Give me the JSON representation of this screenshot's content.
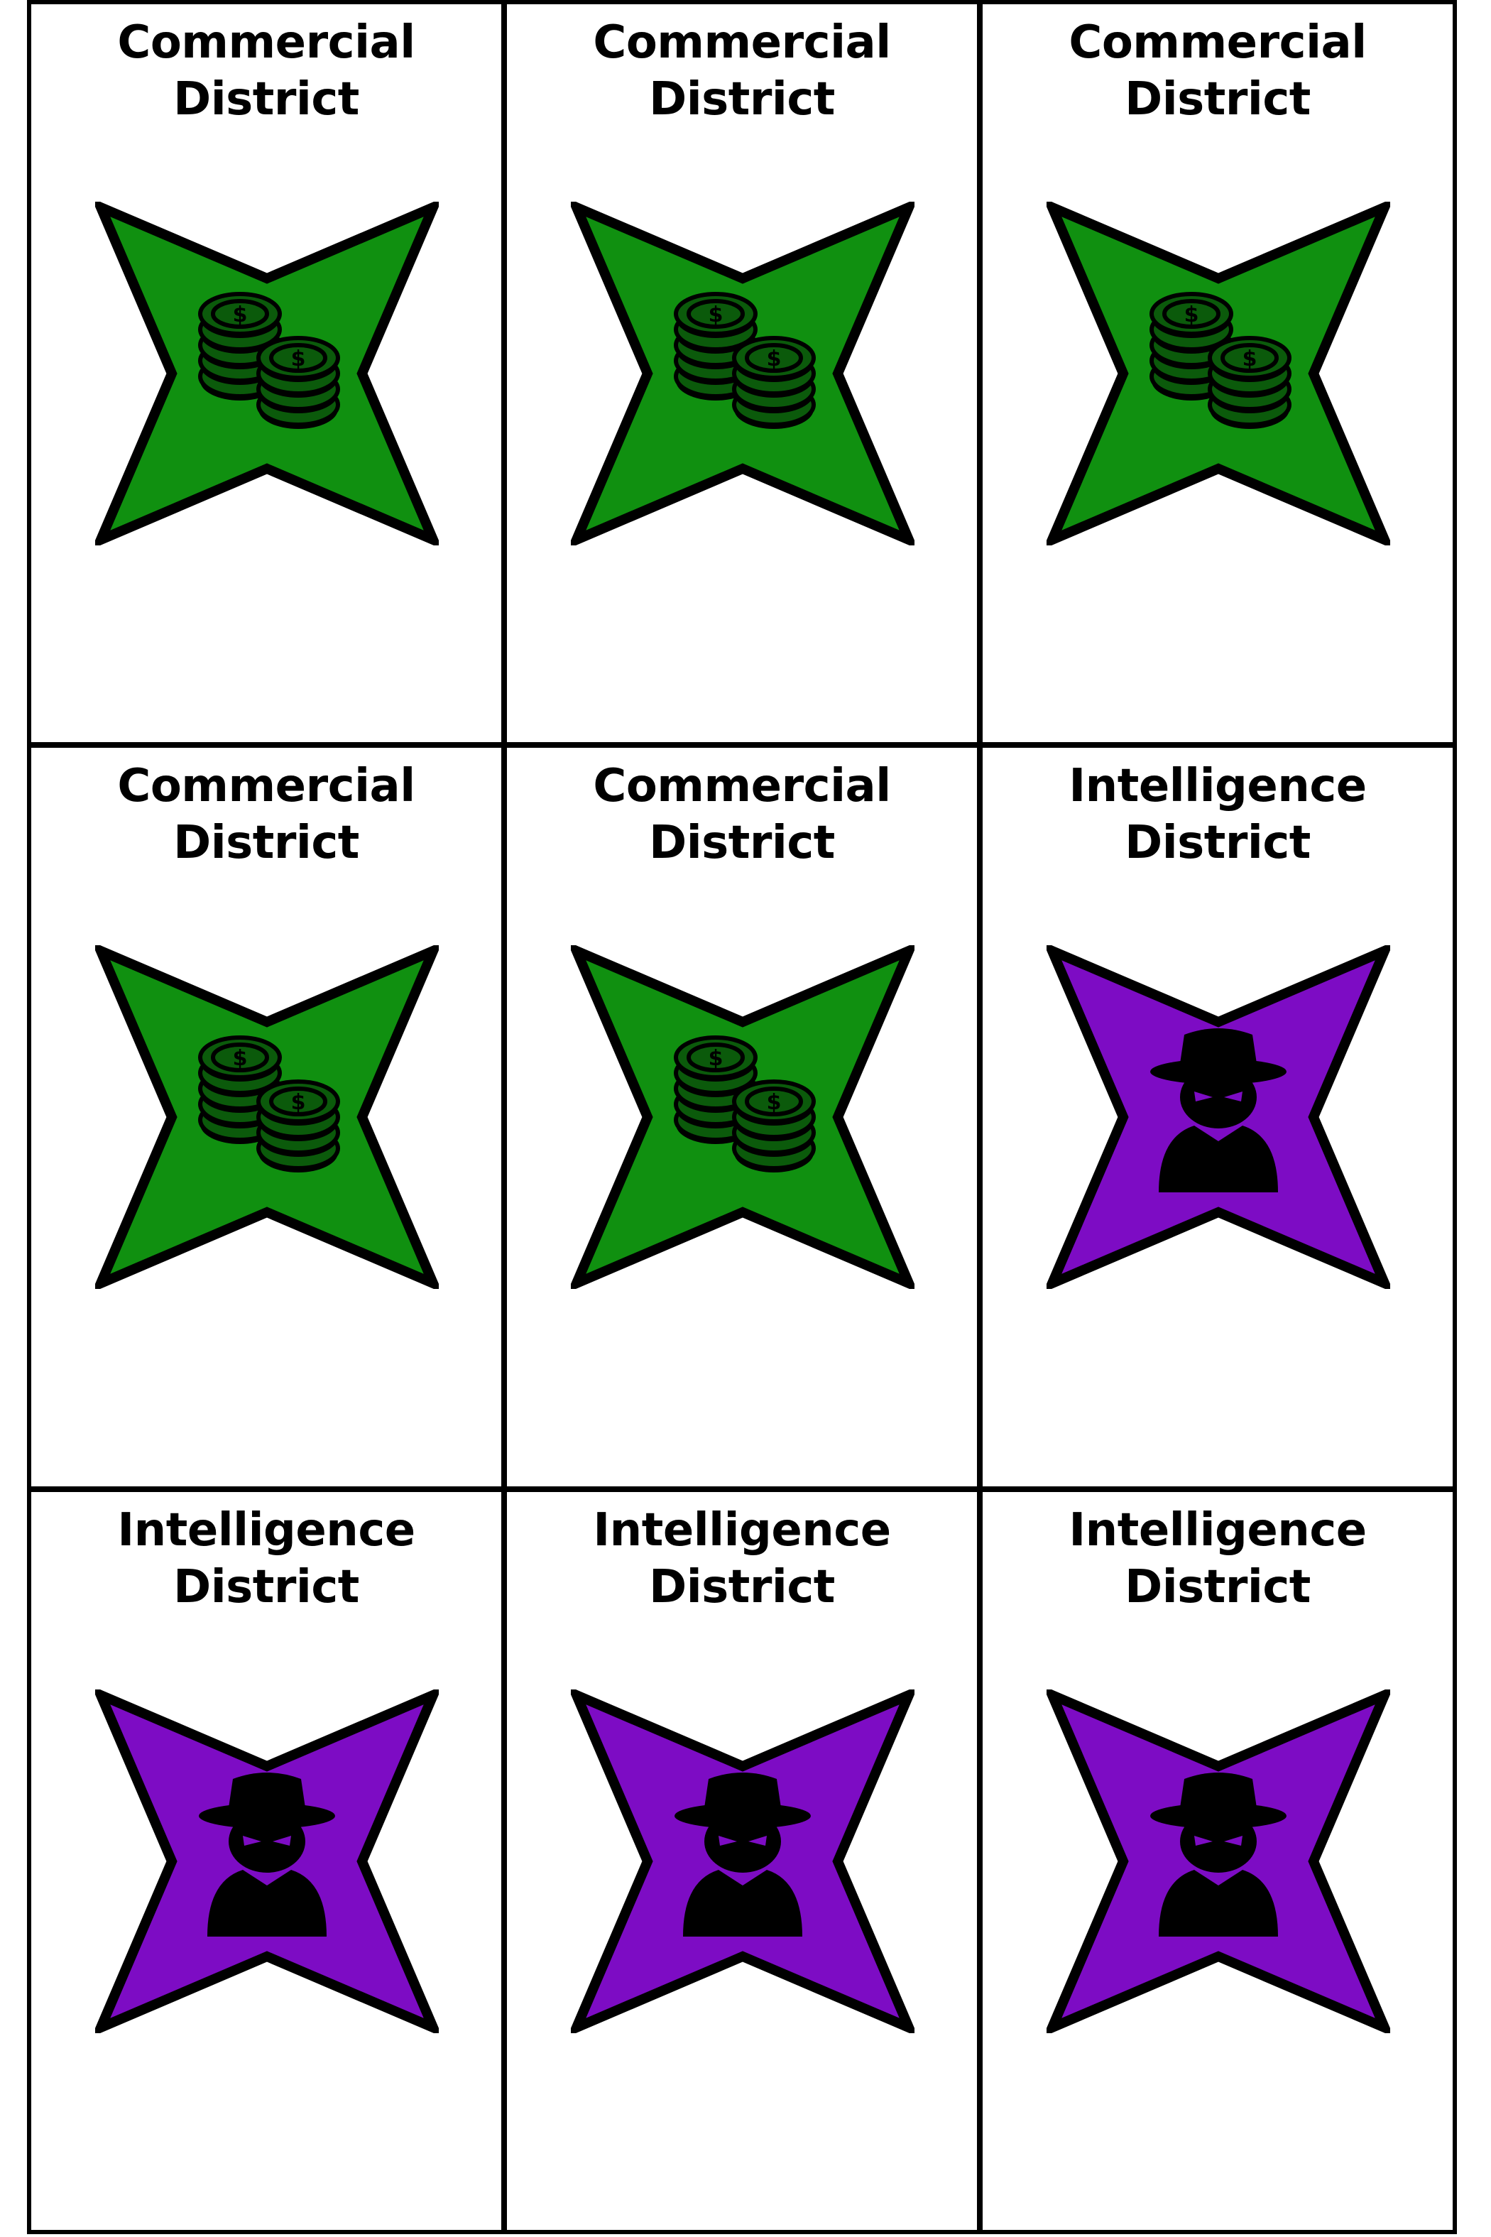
{
  "sheet": {
    "cards": [
      {
        "title": "Commercial\nDistrict",
        "type": "commercial",
        "color": "#109010",
        "icon": "coins-icon"
      },
      {
        "title": "Commercial\nDistrict",
        "type": "commercial",
        "color": "#109010",
        "icon": "coins-icon"
      },
      {
        "title": "Commercial\nDistrict",
        "type": "commercial",
        "color": "#109010",
        "icon": "coins-icon"
      },
      {
        "title": "Commercial\nDistrict",
        "type": "commercial",
        "color": "#109010",
        "icon": "coins-icon"
      },
      {
        "title": "Commercial\nDistrict",
        "type": "commercial",
        "color": "#109010",
        "icon": "coins-icon"
      },
      {
        "title": "Intelligence\nDistrict",
        "type": "intelligence",
        "color": "#7d0cc4",
        "icon": "spy-icon"
      },
      {
        "title": "Intelligence\nDistrict",
        "type": "intelligence",
        "color": "#7d0cc4",
        "icon": "spy-icon"
      },
      {
        "title": "Intelligence\nDistrict",
        "type": "intelligence",
        "color": "#7d0cc4",
        "icon": "spy-icon"
      },
      {
        "title": "Intelligence\nDistrict",
        "type": "intelligence",
        "color": "#7d0cc4",
        "icon": "spy-icon"
      }
    ]
  }
}
